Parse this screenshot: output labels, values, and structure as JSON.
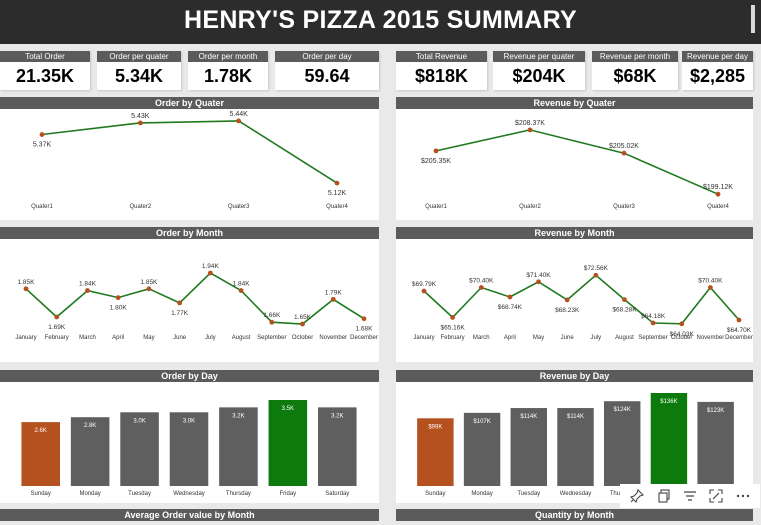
{
  "title": "HENRY'S PIZZA 2015 SUMMARY",
  "kpis": [
    {
      "label": "Total Order",
      "value": "21.35K"
    },
    {
      "label": "Order per quater",
      "value": "5.34K"
    },
    {
      "label": "Order per month",
      "value": "1.78K"
    },
    {
      "label": "Order per day",
      "value": "59.64"
    },
    {
      "label": "Total Revenue",
      "value": "$818K"
    },
    {
      "label": "Revenue per quater",
      "value": "$204K"
    },
    {
      "label": "Revenue per month",
      "value": "$68K"
    },
    {
      "label": "Revenue per day",
      "value": "$2,285"
    }
  ],
  "sections": {
    "avg_order": "Average Order value by Month",
    "quantity": "Quantity by Month"
  },
  "colors": {
    "line": "#1f7a1f",
    "point": "#b5501f",
    "bar": "#5f5f5f",
    "low": "#b5501f",
    "high": "#0c7a0c"
  },
  "chart_data": [
    {
      "type": "line",
      "title": "Order by Quater",
      "categories": [
        "Quater1",
        "Quater2",
        "Quater3",
        "Quater4"
      ],
      "values": [
        5.37,
        5.43,
        5.44,
        5.12
      ],
      "labels": [
        "5.37K",
        "5.43K",
        "5.44K",
        "5.12K"
      ],
      "ylim": [
        5.1,
        5.45
      ]
    },
    {
      "type": "line",
      "title": "Revenue by Quater",
      "categories": [
        "Quater1",
        "Quater2",
        "Quater3",
        "Quater4"
      ],
      "values": [
        205.35,
        208.37,
        205.02,
        199.12
      ],
      "labels": [
        "$205.35K",
        "$208.37K",
        "$205.02K",
        "$199.12K"
      ],
      "ylim": [
        199,
        208.5
      ]
    },
    {
      "type": "line",
      "title": "Order by Month",
      "categories": [
        "January",
        "February",
        "March",
        "April",
        "May",
        "June",
        "July",
        "August",
        "September",
        "October",
        "November",
        "December"
      ],
      "values": [
        1.85,
        1.69,
        1.84,
        1.8,
        1.85,
        1.77,
        1.94,
        1.84,
        1.66,
        1.65,
        1.79,
        1.68
      ],
      "labels": [
        "1.85K",
        "1.69K",
        "1.84K",
        "1.80K",
        "1.85K",
        "1.77K",
        "1.94K",
        "1.84K",
        "1.66K",
        "1.65K",
        "1.79K",
        "1.68K"
      ],
      "ylim": [
        1.65,
        1.94
      ]
    },
    {
      "type": "line",
      "title": "Revenue by Month",
      "categories": [
        "January",
        "February",
        "March",
        "April",
        "May",
        "June",
        "July",
        "August",
        "September",
        "October",
        "November",
        "December"
      ],
      "values": [
        69.79,
        65.16,
        70.4,
        68.74,
        71.4,
        68.23,
        72.56,
        68.28,
        64.18,
        64.03,
        70.4,
        64.7
      ],
      "labels": [
        "$69.79K",
        "$65.16K",
        "$70.40K",
        "$68.74K",
        "$71.40K",
        "$68.23K",
        "$72.56K",
        "$68.28K",
        "$64.18K",
        "$64.03K",
        "$70.40K",
        "$64.70K"
      ],
      "ylim": [
        64,
        72.6
      ]
    },
    {
      "type": "bar",
      "title": "Order by Day",
      "categories": [
        "Sunday",
        "Monday",
        "Tuesday",
        "Wednesday",
        "Thursday",
        "Friday",
        "Saturday"
      ],
      "values": [
        2.6,
        2.8,
        3.0,
        3.0,
        3.2,
        3.5,
        3.2
      ],
      "labels": [
        "2.6K",
        "2.8K",
        "3.0K",
        "3.0K",
        "3.2K",
        "3.5K",
        "3.2K"
      ],
      "ylim": [
        0,
        3.5
      ],
      "highlight_low": 0,
      "highlight_high": 5
    },
    {
      "type": "bar",
      "title": "Revenue by Day",
      "categories": [
        "Sunday",
        "Monday",
        "Tuesday",
        "Wednesday",
        "Thursday",
        "Friday",
        "Saturday"
      ],
      "values": [
        99,
        107,
        114,
        114,
        124,
        136,
        123
      ],
      "labels": [
        "$99K",
        "$107K",
        "$114K",
        "$114K",
        "$124K",
        "$136K",
        "$123K"
      ],
      "ylim": [
        0,
        136
      ],
      "highlight_low": 0,
      "highlight_high": 5
    }
  ],
  "toolbar": [
    "pin-icon",
    "copy-icon",
    "filter-icon",
    "focus-icon",
    "more-icon"
  ]
}
